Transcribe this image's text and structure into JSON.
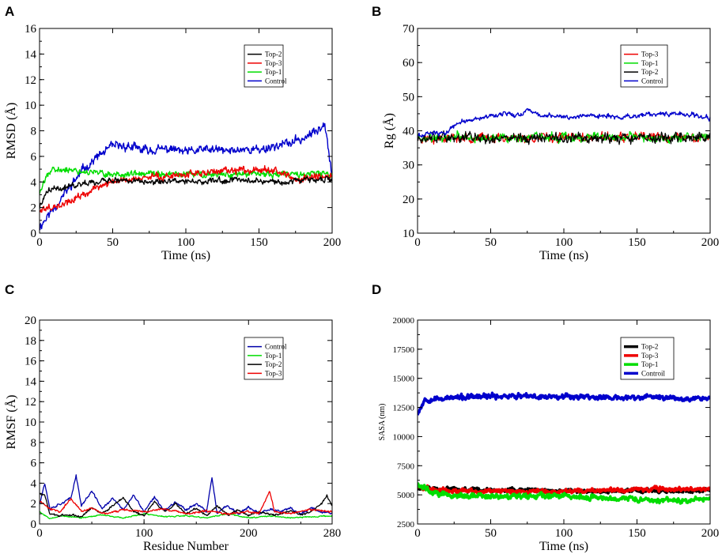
{
  "panels": [
    {
      "letter": "A",
      "type": "line",
      "xlabel": "Time (ns)",
      "ylabel": "RMSD (Å)",
      "xlim": [
        0,
        200
      ],
      "ylim": [
        0,
        16
      ],
      "xticks": [
        0,
        50,
        100,
        150,
        200
      ],
      "yticks": [
        0,
        2,
        4,
        6,
        8,
        10,
        12,
        14,
        16
      ],
      "legend": [
        "Top-2",
        "Top-3",
        "Top-1",
        "Control"
      ],
      "series": [
        {
          "name": "Control",
          "color": "#0000cc",
          "x": [
            0,
            10,
            20,
            30,
            40,
            50,
            60,
            70,
            80,
            90,
            100,
            110,
            120,
            130,
            140,
            150,
            160,
            170,
            180,
            190,
            195,
            200
          ],
          "y": [
            0.5,
            2.0,
            3.5,
            5.0,
            6.0,
            6.8,
            6.8,
            6.5,
            6.5,
            6.6,
            6.3,
            6.5,
            6.5,
            6.4,
            6.6,
            6.5,
            6.8,
            7.0,
            7.4,
            8.0,
            8.8,
            4.5
          ]
        },
        {
          "name": "Top-1",
          "color": "#00dd00",
          "x": [
            0,
            5,
            10,
            20,
            30,
            40,
            50,
            60,
            80,
            100,
            120,
            140,
            160,
            180,
            200
          ],
          "y": [
            3.0,
            4.6,
            4.9,
            5.0,
            4.8,
            4.7,
            4.6,
            4.6,
            4.6,
            4.6,
            4.6,
            4.6,
            4.6,
            4.6,
            4.6
          ]
        },
        {
          "name": "Top-3",
          "color": "#ee0000",
          "x": [
            0,
            10,
            20,
            30,
            40,
            50,
            60,
            80,
            100,
            120,
            140,
            155,
            165,
            175,
            185,
            200
          ],
          "y": [
            1.8,
            2.1,
            2.4,
            3.0,
            3.6,
            4.0,
            4.2,
            4.4,
            4.6,
            4.8,
            4.9,
            5.1,
            4.8,
            4.0,
            4.5,
            4.4
          ]
        },
        {
          "name": "Top-2",
          "color": "#000000",
          "x": [
            0,
            5,
            10,
            20,
            30,
            40,
            60,
            80,
            100,
            120,
            140,
            160,
            180,
            200
          ],
          "y": [
            2.0,
            3.2,
            3.5,
            3.6,
            3.9,
            4.1,
            4.1,
            4.0,
            4.0,
            4.1,
            4.2,
            4.0,
            4.1,
            4.3
          ]
        }
      ]
    },
    {
      "letter": "B",
      "type": "line",
      "xlabel": "Time (ns)",
      "ylabel": "Rg (Å)",
      "xlim": [
        0,
        200
      ],
      "ylim": [
        10,
        70
      ],
      "xticks": [
        0,
        50,
        100,
        150,
        200
      ],
      "yticks": [
        10,
        20,
        30,
        40,
        50,
        60,
        70
      ],
      "legend": [
        "Top-3",
        "Top-1",
        "Top-2",
        "Control"
      ],
      "series": [
        {
          "name": "Top-3",
          "color": "#ee0000",
          "x": [
            0,
            50,
            100,
            150,
            200
          ],
          "y": [
            38,
            38,
            38,
            38,
            38
          ]
        },
        {
          "name": "Top-1",
          "color": "#00dd00",
          "x": [
            0,
            50,
            100,
            150,
            200
          ],
          "y": [
            38,
            38,
            38,
            38,
            38
          ]
        },
        {
          "name": "Top-2",
          "color": "#000000",
          "x": [
            0,
            50,
            100,
            150,
            200
          ],
          "y": [
            38,
            38,
            38,
            38,
            38
          ]
        },
        {
          "name": "Control",
          "color": "#0000cc",
          "x": [
            0,
            10,
            20,
            25,
            30,
            40,
            50,
            60,
            70,
            75,
            80,
            90,
            100,
            120,
            140,
            160,
            180,
            190,
            200
          ],
          "y": [
            38.5,
            39.0,
            39.5,
            41.5,
            42.5,
            43.5,
            44.5,
            45.0,
            44.5,
            46.5,
            45.0,
            44.5,
            44.0,
            44.5,
            44.0,
            44.8,
            45.0,
            44.5,
            43.5
          ]
        }
      ]
    },
    {
      "letter": "C",
      "type": "line",
      "xlabel": "Residue Number",
      "ylabel": "RMSF (Å)",
      "xlim": [
        0,
        280
      ],
      "ylim": [
        0,
        20
      ],
      "xticks": [
        0,
        100,
        200,
        280
      ],
      "yticks": [
        0,
        2,
        4,
        6,
        8,
        10,
        12,
        14,
        16,
        18,
        20
      ],
      "legend": [
        "Control",
        "Top-1",
        "Top-2",
        "Top-3"
      ],
      "series": [
        {
          "name": "Control",
          "color": "#0000aa",
          "x": [
            0,
            5,
            10,
            20,
            30,
            35,
            40,
            50,
            60,
            70,
            80,
            90,
            100,
            110,
            120,
            130,
            140,
            150,
            160,
            165,
            170,
            180,
            190,
            200,
            210,
            220,
            230,
            240,
            250,
            260,
            270,
            280
          ],
          "y": [
            2.0,
            4.0,
            1.5,
            2.0,
            2.5,
            4.8,
            1.8,
            3.2,
            1.5,
            2.5,
            1.4,
            2.8,
            1.2,
            2.6,
            1.3,
            2.2,
            1.4,
            2.0,
            1.2,
            4.6,
            1.0,
            1.8,
            1.0,
            1.6,
            1.0,
            1.5,
            1.2,
            1.5,
            1.0,
            1.6,
            1.2,
            1.0
          ]
        },
        {
          "name": "Top-1",
          "color": "#00dd00",
          "x": [
            0,
            10,
            20,
            40,
            60,
            80,
            100,
            120,
            140,
            160,
            180,
            200,
            220,
            240,
            260,
            280
          ],
          "y": [
            1.2,
            0.5,
            0.8,
            0.6,
            0.9,
            0.6,
            1.0,
            0.7,
            0.8,
            0.6,
            1.0,
            0.6,
            0.8,
            0.6,
            0.7,
            0.8
          ]
        },
        {
          "name": "Top-2",
          "color": "#000000",
          "x": [
            0,
            5,
            10,
            20,
            30,
            40,
            50,
            60,
            70,
            80,
            90,
            100,
            110,
            120,
            130,
            140,
            150,
            160,
            170,
            180,
            190,
            200,
            210,
            220,
            230,
            240,
            250,
            260,
            270,
            275,
            280
          ],
          "y": [
            3.0,
            2.8,
            1.0,
            0.8,
            0.9,
            0.7,
            1.6,
            1.0,
            1.8,
            2.6,
            1.2,
            0.8,
            2.2,
            1.2,
            2.0,
            1.0,
            1.6,
            0.8,
            1.8,
            0.9,
            1.4,
            0.8,
            1.2,
            0.9,
            1.0,
            1.3,
            0.9,
            1.2,
            2.0,
            2.8,
            1.8
          ]
        },
        {
          "name": "Top-3",
          "color": "#ee0000",
          "x": [
            0,
            10,
            20,
            30,
            40,
            50,
            60,
            80,
            100,
            120,
            140,
            160,
            180,
            200,
            210,
            215,
            220,
            225,
            240,
            260,
            280
          ],
          "y": [
            2.2,
            1.5,
            1.2,
            2.5,
            1.2,
            1.6,
            1.0,
            1.4,
            1.2,
            1.5,
            1.0,
            1.3,
            1.0,
            1.2,
            1.0,
            2.0,
            3.3,
            1.2,
            1.0,
            1.4,
            1.2
          ]
        }
      ]
    },
    {
      "letter": "D",
      "type": "line",
      "xlabel": "Time (ns)",
      "ylabel": "SASA (nm)",
      "xlim": [
        0,
        200
      ],
      "ylim": [
        2500,
        20000
      ],
      "xticks": [
        0,
        50,
        100,
        150,
        200
      ],
      "yticks": [
        2500,
        5000,
        7500,
        10000,
        12500,
        15000,
        17500,
        20000
      ],
      "legend": [
        "Top-2",
        "Top-3",
        "Top-1",
        "Controil"
      ],
      "series": [
        {
          "name": "Controil",
          "color": "#0000cc",
          "x": [
            0,
            5,
            20,
            40,
            60,
            80,
            100,
            120,
            140,
            160,
            180,
            200
          ],
          "y": [
            12000,
            13200,
            13300,
            13400,
            13500,
            13400,
            13500,
            13400,
            13300,
            13400,
            13300,
            13300
          ]
        },
        {
          "name": "Top-2",
          "color": "#000000",
          "x": [
            0,
            10,
            20,
            40,
            60,
            80,
            100,
            120,
            140,
            160,
            180,
            200
          ],
          "y": [
            5600,
            5500,
            5500,
            5400,
            5400,
            5400,
            5300,
            5300,
            5300,
            5400,
            5300,
            5400
          ]
        },
        {
          "name": "Top-3",
          "color": "#ee0000",
          "x": [
            0,
            10,
            20,
            40,
            60,
            80,
            100,
            120,
            140,
            160,
            180,
            200
          ],
          "y": [
            5700,
            5500,
            5400,
            5300,
            5300,
            5300,
            5300,
            5400,
            5400,
            5500,
            5500,
            5500
          ]
        },
        {
          "name": "Top-1",
          "color": "#00dd00",
          "x": [
            0,
            5,
            10,
            20,
            40,
            60,
            80,
            100,
            120,
            140,
            160,
            180,
            200
          ],
          "y": [
            5900,
            5600,
            5200,
            5000,
            4900,
            4800,
            4900,
            4900,
            4800,
            4700,
            4600,
            4500,
            4700
          ]
        }
      ]
    }
  ]
}
